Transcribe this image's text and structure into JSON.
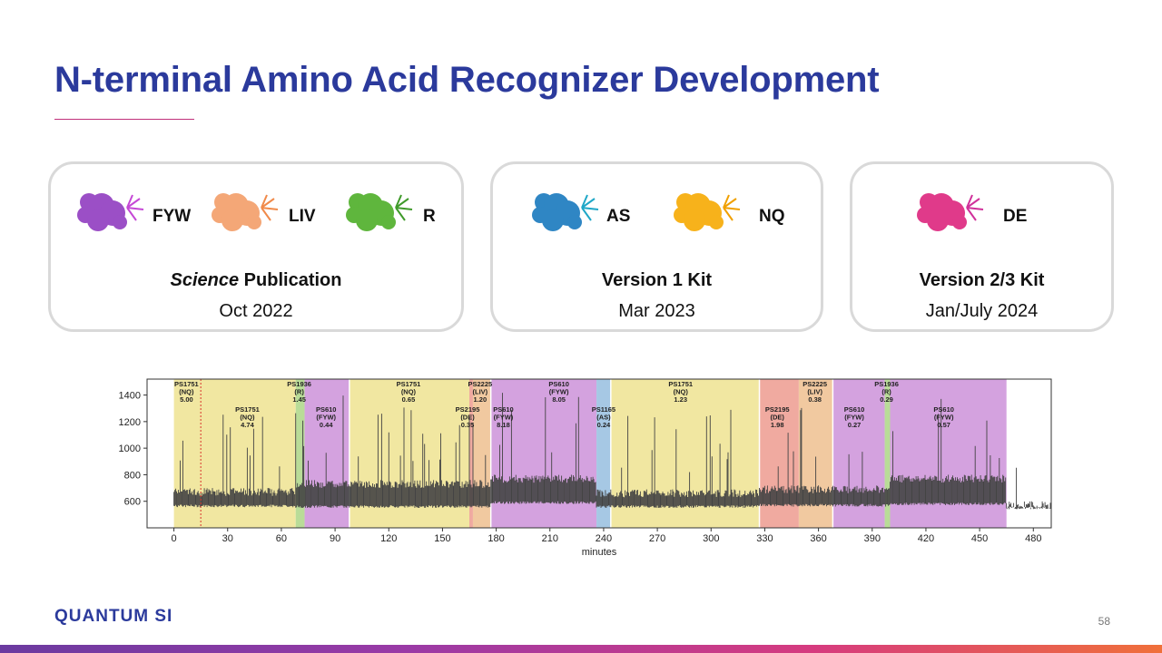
{
  "slide": {
    "title": "N-terminal Amino Acid Recognizer Development",
    "page_number": "58",
    "logo_text": "QUANTUM SI"
  },
  "cards": [
    {
      "recognizers": [
        {
          "label": "FYW",
          "color": "#9b4fc6",
          "icon": "purple-recognizer-icon"
        },
        {
          "label": "LIV",
          "color": "#f4a777",
          "icon": "orange-recognizer-icon"
        },
        {
          "label": "R",
          "color": "#5fb63d",
          "icon": "green-recognizer-icon"
        }
      ],
      "heading_italic": "Science",
      "heading_rest": " Publication",
      "date": "Oct 2022"
    },
    {
      "recognizers": [
        {
          "label": "AS",
          "color": "#2f86c4",
          "icon": "blue-recognizer-icon"
        },
        {
          "label": "NQ",
          "color": "#f7b21b",
          "icon": "yellow-recognizer-icon"
        }
      ],
      "heading": "Version 1 Kit",
      "date": "Mar 2023"
    },
    {
      "recognizers": [
        {
          "label": "DE",
          "color": "#e03a8a",
          "icon": "pink-recognizer-icon"
        }
      ],
      "heading": "Version 2/3 Kit",
      "date": "Jan/July 2024"
    }
  ],
  "chart_data": {
    "type": "area",
    "xlabel": "minutes",
    "ylabel": "",
    "xlim": [
      -15,
      490
    ],
    "ylim": [
      400,
      1520
    ],
    "xticks": [
      0,
      30,
      60,
      90,
      120,
      150,
      180,
      210,
      240,
      270,
      300,
      330,
      360,
      390,
      420,
      450,
      480
    ],
    "yticks": [
      600,
      800,
      1000,
      1200,
      1400
    ],
    "regions": [
      {
        "start": 0,
        "end": 68,
        "color": "#f1e7a1",
        "lines": [
          "PS1751",
          "(NQ)",
          "5.00"
        ],
        "label_x": 7,
        "label_row": 0,
        "extra_labels": [
          {
            "lines": [
              "PS1751",
              "(NQ)",
              "4.74"
            ],
            "x": 41,
            "row": 2
          }
        ]
      },
      {
        "start": 68,
        "end": 73,
        "color": "#b9dc98",
        "lines": [
          "PS1936",
          "(R)",
          "1.45"
        ],
        "label_x": 70,
        "label_row": 0
      },
      {
        "start": 73,
        "end": 98,
        "color": "#d4a2df",
        "lines": [
          "PS610",
          "(FYW)",
          "0.44"
        ],
        "label_x": 85,
        "label_row": 2
      },
      {
        "start": 98,
        "end": 165,
        "color": "#f1e7a1",
        "lines": [
          "PS1751",
          "(NQ)",
          "0.65"
        ],
        "label_x": 131,
        "label_row": 0
      },
      {
        "start": 165,
        "end": 167,
        "color": "#f0aaa0",
        "lines": [
          "PS2195",
          "(DE)",
          "0.35"
        ],
        "label_x": 164,
        "label_row": 2
      },
      {
        "start": 167,
        "end": 177,
        "color": "#f1c9a0",
        "lines": [
          "PS2225",
          "(LIV)",
          "1.20"
        ],
        "label_x": 171,
        "label_row": 0
      },
      {
        "start": 177,
        "end": 236,
        "color": "#d4a2df",
        "lines": [
          "PS610",
          "(FYW)",
          "8.05"
        ],
        "label_x": 215,
        "label_row": 0,
        "extra_labels": [
          {
            "lines": [
              "PS610",
              "(FYW)",
              "8.18"
            ],
            "x": 184,
            "row": 2
          }
        ]
      },
      {
        "start": 236,
        "end": 244,
        "color": "#a6c8e4",
        "lines": [
          "PS1165",
          "(AS)",
          "0.24"
        ],
        "label_x": 240,
        "label_row": 2
      },
      {
        "start": 244,
        "end": 327,
        "color": "#f1e7a1",
        "lines": [
          "PS1751",
          "(NQ)",
          "1.23"
        ],
        "label_x": 283,
        "label_row": 0
      },
      {
        "start": 327,
        "end": 349,
        "color": "#f0aaa0",
        "lines": [
          "PS2195",
          "(DE)",
          "1.98"
        ],
        "label_x": 337,
        "label_row": 2
      },
      {
        "start": 349,
        "end": 368,
        "color": "#f1c9a0",
        "lines": [
          "PS2225",
          "(LIV)",
          "0.38"
        ],
        "label_x": 358,
        "label_row": 0
      },
      {
        "start": 368,
        "end": 397,
        "color": "#d4a2df",
        "lines": [
          "PS610",
          "(FYW)",
          "0.27"
        ],
        "label_x": 380,
        "label_row": 2
      },
      {
        "start": 397,
        "end": 400,
        "color": "#b9dc98",
        "lines": [
          "PS1936",
          "(R)",
          "0.29"
        ],
        "label_x": 398,
        "label_row": 0
      },
      {
        "start": 400,
        "end": 465,
        "color": "#d4a2df",
        "lines": [
          "PS610",
          "(FYW)",
          "0.57"
        ],
        "label_x": 430,
        "label_row": 2
      }
    ],
    "vlines": [
      15
    ],
    "trace_segments": [
      {
        "start": 0,
        "end": 68,
        "low": 555,
        "high": 700
      },
      {
        "start": 68,
        "end": 177,
        "low": 550,
        "high": 760
      },
      {
        "start": 177,
        "end": 236,
        "low": 580,
        "high": 800
      },
      {
        "start": 236,
        "end": 327,
        "low": 550,
        "high": 690
      },
      {
        "start": 327,
        "end": 400,
        "low": 560,
        "high": 720
      },
      {
        "start": 400,
        "end": 465,
        "low": 570,
        "high": 800
      },
      {
        "start": 465,
        "end": 490,
        "low": 540,
        "high": 600
      }
    ],
    "trace_color": "#444444"
  }
}
